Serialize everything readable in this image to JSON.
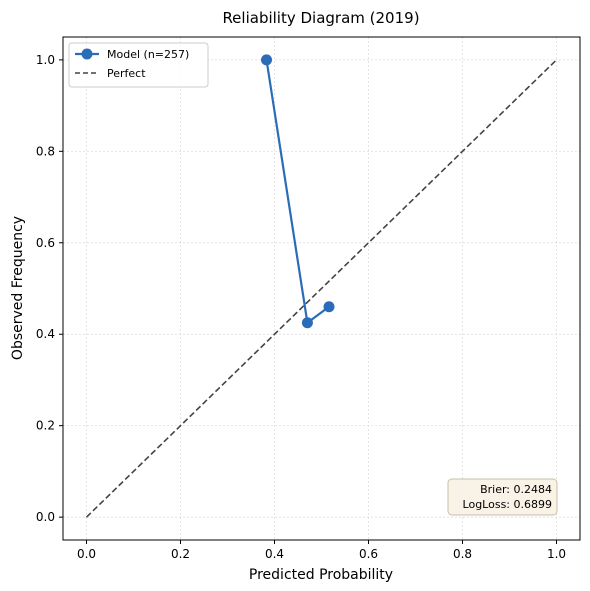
{
  "chart_data": {
    "type": "line",
    "title": "Reliability Diagram (2019)",
    "xlabel": "Predicted Probability",
    "ylabel": "Observed Frequency",
    "xlim": [
      -0.05,
      1.05
    ],
    "ylim": [
      -0.05,
      1.05
    ],
    "xticks": [
      "0.0",
      "0.2",
      "0.4",
      "0.6",
      "0.8",
      "1.0"
    ],
    "yticks": [
      "0.0",
      "0.2",
      "0.4",
      "0.6",
      "0.8",
      "1.0"
    ],
    "grid": true,
    "legend_position": "top-left",
    "series": [
      {
        "name": "Model (n=257)",
        "style": "line-marker",
        "color": "#2b6cb8",
        "points": [
          {
            "x": 0.383,
            "y": 1.0
          },
          {
            "x": 0.47,
            "y": 0.425
          },
          {
            "x": 0.516,
            "y": 0.46
          }
        ]
      },
      {
        "name": "Perfect",
        "style": "dashed",
        "color": "#444444",
        "points": [
          {
            "x": 0.0,
            "y": 0.0
          },
          {
            "x": 1.0,
            "y": 1.0
          }
        ]
      }
    ],
    "annotation": {
      "lines": [
        "Brier: 0.2484",
        "LogLoss: 0.6899"
      ],
      "position": "bottom-right",
      "background": "#f8f3e6",
      "border": "#c9bfa8"
    }
  }
}
